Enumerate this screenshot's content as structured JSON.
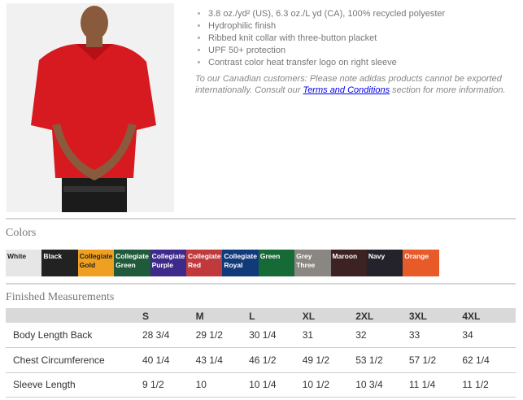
{
  "features": [
    "3.8 oz./yd² (US), 6.3 oz./L yd (CA), 100% recycled polyester",
    "Hydrophilic finish",
    "Ribbed knit collar with three-button placket",
    "UPF 50+ protection",
    "Contrast color heat transfer logo on right sleeve"
  ],
  "note": {
    "before": "To our Canadian customers: Please note adidas products cannot be exported internationally. Consult our ",
    "link": "Terms and Conditions",
    "after": " section for more information."
  },
  "colors_title": "Colors",
  "colors": [
    {
      "name": "White",
      "hex": "#e6e6e6",
      "text": "#222"
    },
    {
      "name": "Black",
      "hex": "#222222",
      "text": "#fff"
    },
    {
      "name": "Collegiate Gold",
      "hex": "#f0a020",
      "text": "#222"
    },
    {
      "name": "Collegiate Green",
      "hex": "#1f5a3a",
      "text": "#fff"
    },
    {
      "name": "Collegiate Purple",
      "hex": "#3e2a8a",
      "text": "#fff"
    },
    {
      "name": "Collegiate Red",
      "hex": "#c0393b",
      "text": "#fff"
    },
    {
      "name": "Collegiate Royal",
      "hex": "#113a7a",
      "text": "#fff"
    },
    {
      "name": "Green",
      "hex": "#166a35",
      "text": "#fff"
    },
    {
      "name": "Grey Three",
      "hex": "#8a8682",
      "text": "#fff"
    },
    {
      "name": "Maroon",
      "hex": "#3c2222",
      "text": "#fff"
    },
    {
      "name": "Navy",
      "hex": "#24232c",
      "text": "#fff"
    },
    {
      "name": "Orange",
      "hex": "#e85a28",
      "text": "#fff"
    }
  ],
  "measurements_title": "Finished Measurements",
  "sizes": [
    "S",
    "M",
    "L",
    "XL",
    "2XL",
    "3XL",
    "4XL"
  ],
  "rows": [
    {
      "label": "Body Length Back",
      "values": [
        "28 3/4",
        "29 1/2",
        "30 1/4",
        "31",
        "32",
        "33",
        "34"
      ]
    },
    {
      "label": "Chest Circumference",
      "values": [
        "40 1/4",
        "43 1/4",
        "46 1/2",
        "49 1/2",
        "53 1/2",
        "57 1/2",
        "62 1/4"
      ]
    },
    {
      "label": "Sleeve Length",
      "values": [
        "9 1/2",
        "10",
        "10 1/4",
        "10 1/2",
        "10 3/4",
        "11 1/4",
        "11 1/2"
      ]
    }
  ]
}
